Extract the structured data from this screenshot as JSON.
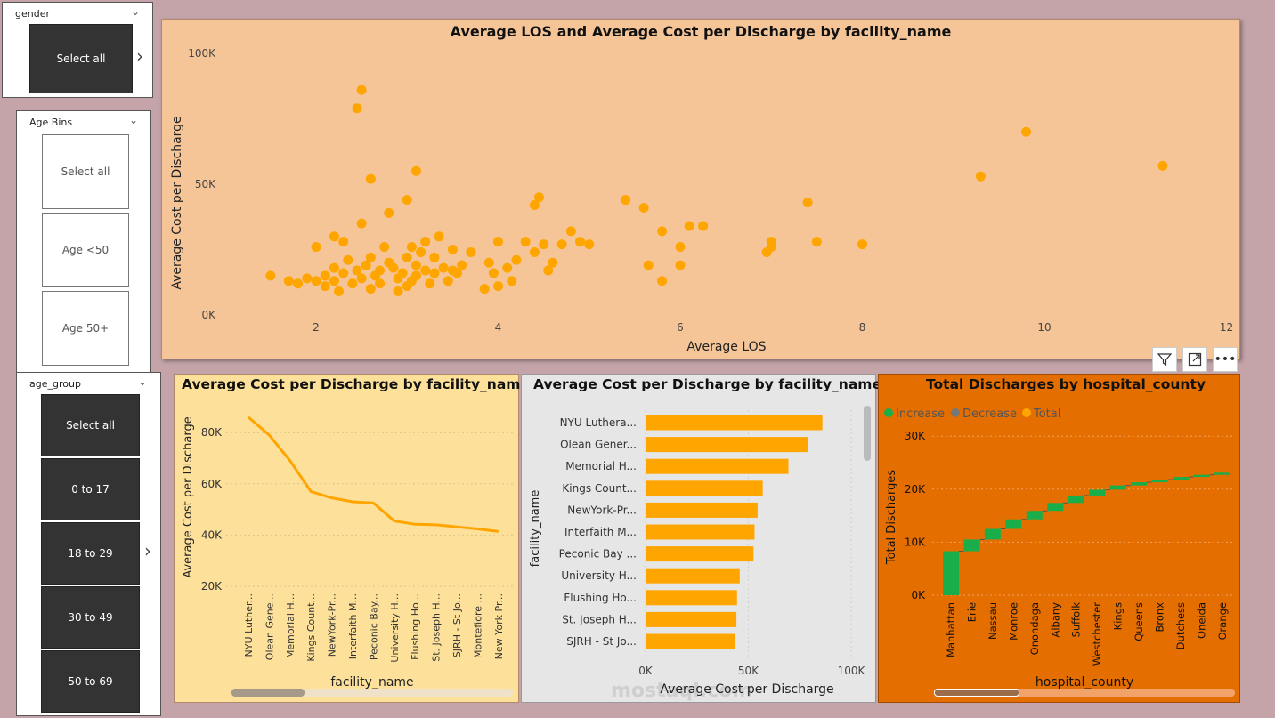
{
  "slicers": {
    "gender": {
      "title": "gender",
      "items": [
        "Select all"
      ]
    },
    "age_bins": {
      "title": "Age Bins",
      "items": [
        "Select all",
        "Age <50",
        "Age 50+"
      ]
    },
    "age_group": {
      "title": "age_group",
      "items": [
        "Select all",
        "0 to 17",
        "18 to 29",
        "30 to 49",
        "50 to 69"
      ]
    }
  },
  "toolbar": {
    "filter_icon": "filter-icon",
    "focus_icon": "focus-mode-icon",
    "more_icon": "more-options-icon"
  },
  "colors": {
    "orange": "#ffa500",
    "scatter_bg": "#f5c598",
    "line_bg": "#fde09a",
    "bar_bg": "#e6e6e6",
    "waterfall_bg": "#e56e00",
    "increase": "#1aae4a"
  },
  "watermark": "mostaql.com",
  "chart_data": [
    {
      "type": "scatter",
      "title": "Average LOS and Average Cost per Discharge by facility_name",
      "xlabel": "Average LOS",
      "ylabel": "Average Cost per Discharge",
      "xticks": [
        "2",
        "4",
        "6",
        "8",
        "10",
        "12"
      ],
      "yticks": [
        "0K",
        "50K",
        "100K"
      ],
      "xlim": [
        1.3,
        12
      ],
      "ylim": [
        0,
        100000
      ],
      "points": [
        [
          2.5,
          86000
        ],
        [
          2.45,
          79000
        ],
        [
          2.6,
          52000
        ],
        [
          3.1,
          55000
        ],
        [
          2.8,
          39000
        ],
        [
          3.0,
          44000
        ],
        [
          2.5,
          35000
        ],
        [
          2.2,
          30000
        ],
        [
          2.3,
          28000
        ],
        [
          2.0,
          26000
        ],
        [
          1.5,
          15000
        ],
        [
          1.7,
          13000
        ],
        [
          1.8,
          12000
        ],
        [
          1.9,
          14000
        ],
        [
          2.0,
          13000
        ],
        [
          2.1,
          15000
        ],
        [
          2.1,
          11000
        ],
        [
          2.2,
          18000
        ],
        [
          2.2,
          13000
        ],
        [
          2.25,
          9000
        ],
        [
          2.3,
          16000
        ],
        [
          2.35,
          21000
        ],
        [
          2.4,
          12000
        ],
        [
          2.45,
          17000
        ],
        [
          2.5,
          14000
        ],
        [
          2.55,
          19000
        ],
        [
          2.6,
          22000
        ],
        [
          2.6,
          10000
        ],
        [
          2.65,
          15000
        ],
        [
          2.7,
          17000
        ],
        [
          2.7,
          12000
        ],
        [
          2.75,
          26000
        ],
        [
          2.8,
          20000
        ],
        [
          2.85,
          18000
        ],
        [
          2.9,
          14000
        ],
        [
          2.9,
          9000
        ],
        [
          2.95,
          16000
        ],
        [
          3.0,
          11000
        ],
        [
          3.0,
          22000
        ],
        [
          3.05,
          26000
        ],
        [
          3.05,
          13000
        ],
        [
          3.1,
          19000
        ],
        [
          3.1,
          15000
        ],
        [
          3.15,
          24000
        ],
        [
          3.2,
          17000
        ],
        [
          3.2,
          28000
        ],
        [
          3.25,
          12000
        ],
        [
          3.3,
          22000
        ],
        [
          3.3,
          16000
        ],
        [
          3.35,
          30000
        ],
        [
          3.4,
          18000
        ],
        [
          3.45,
          13000
        ],
        [
          3.5,
          25000
        ],
        [
          3.5,
          17000
        ],
        [
          3.55,
          16000
        ],
        [
          3.6,
          19000
        ],
        [
          3.7,
          24000
        ],
        [
          3.85,
          10000
        ],
        [
          3.9,
          20000
        ],
        [
          3.95,
          16000
        ],
        [
          4.0,
          28000
        ],
        [
          4.0,
          11000
        ],
        [
          4.1,
          18000
        ],
        [
          4.15,
          13000
        ],
        [
          4.2,
          21000
        ],
        [
          4.3,
          28000
        ],
        [
          4.4,
          24000
        ],
        [
          4.4,
          42000
        ],
        [
          4.45,
          45000
        ],
        [
          4.5,
          27000
        ],
        [
          4.55,
          17000
        ],
        [
          4.6,
          20000
        ],
        [
          4.7,
          27000
        ],
        [
          4.8,
          32000
        ],
        [
          4.9,
          28000
        ],
        [
          5.0,
          27000
        ],
        [
          5.4,
          44000
        ],
        [
          5.6,
          41000
        ],
        [
          5.65,
          19000
        ],
        [
          5.8,
          32000
        ],
        [
          5.8,
          13000
        ],
        [
          6.0,
          19000
        ],
        [
          6.0,
          26000
        ],
        [
          6.1,
          34000
        ],
        [
          6.25,
          34000
        ],
        [
          6.95,
          24000
        ],
        [
          7.0,
          28000
        ],
        [
          7.0,
          26000
        ],
        [
          7.4,
          43000
        ],
        [
          7.5,
          28000
        ],
        [
          8.0,
          27000
        ],
        [
          9.3,
          53000
        ],
        [
          9.8,
          70000
        ],
        [
          11.3,
          57000
        ]
      ]
    },
    {
      "type": "line",
      "title": "Average Cost per Discharge by facility_name",
      "xlabel": "facility_name",
      "ylabel": "Average Cost per Discharge",
      "yticks": [
        "20K",
        "40K",
        "60K",
        "80K"
      ],
      "ylim": [
        15000,
        90000
      ],
      "categories": [
        "NYU Luther...",
        "Olean Gene...",
        "Memorial H...",
        "Kings Count...",
        "NewYork-Pr...",
        "Interfaith M...",
        "Peconic Bay...",
        "University H...",
        "Flushing Ho...",
        "St. Joseph H...",
        "SJRH - St Jo...",
        "Montefiore ...",
        "New York Pr..."
      ],
      "values": [
        86000,
        79000,
        69000,
        57000,
        54500,
        53000,
        52500,
        45500,
        44200,
        44000,
        43200,
        42400,
        41400
      ]
    },
    {
      "type": "bar",
      "orientation": "horizontal",
      "title": "Average Cost per Discharge by facility_name",
      "xlabel": "Average Cost per Discharge",
      "ylabel": "facility_name",
      "xticks": [
        "0K",
        "50K",
        "100K"
      ],
      "xlim": [
        0,
        100000
      ],
      "categories": [
        "NYU Luthera...",
        "Olean Gener...",
        "Memorial H...",
        "Kings Count...",
        "NewYork-Pr...",
        "Interfaith M...",
        "Peconic Bay ...",
        "University H...",
        "Flushing Ho...",
        "St. Joseph H...",
        "SJRH - St Jo..."
      ],
      "values": [
        86000,
        79000,
        69500,
        57000,
        54500,
        53000,
        52500,
        45800,
        44500,
        44200,
        43500
      ]
    },
    {
      "type": "waterfall",
      "title": "Total Discharges by hospital_county",
      "xlabel": "hospital_county",
      "ylabel": "Total Discharges",
      "legend": [
        "Increase",
        "Decrease",
        "Total"
      ],
      "yticks": [
        "0K",
        "10K",
        "20K",
        "30K"
      ],
      "ylim": [
        0,
        32000
      ],
      "categories": [
        "Manhattan",
        "Erie",
        "Nassau",
        "Monroe",
        "Onondaga",
        "Albany",
        "Suffolk",
        "Westchester",
        "Kings",
        "Queens",
        "Bronx",
        "Dutchess",
        "Oneida",
        "Orange"
      ],
      "values": [
        8300,
        2200,
        2000,
        1800,
        1600,
        1500,
        1400,
        1100,
        800,
        600,
        500,
        500,
        400,
        400
      ]
    }
  ]
}
